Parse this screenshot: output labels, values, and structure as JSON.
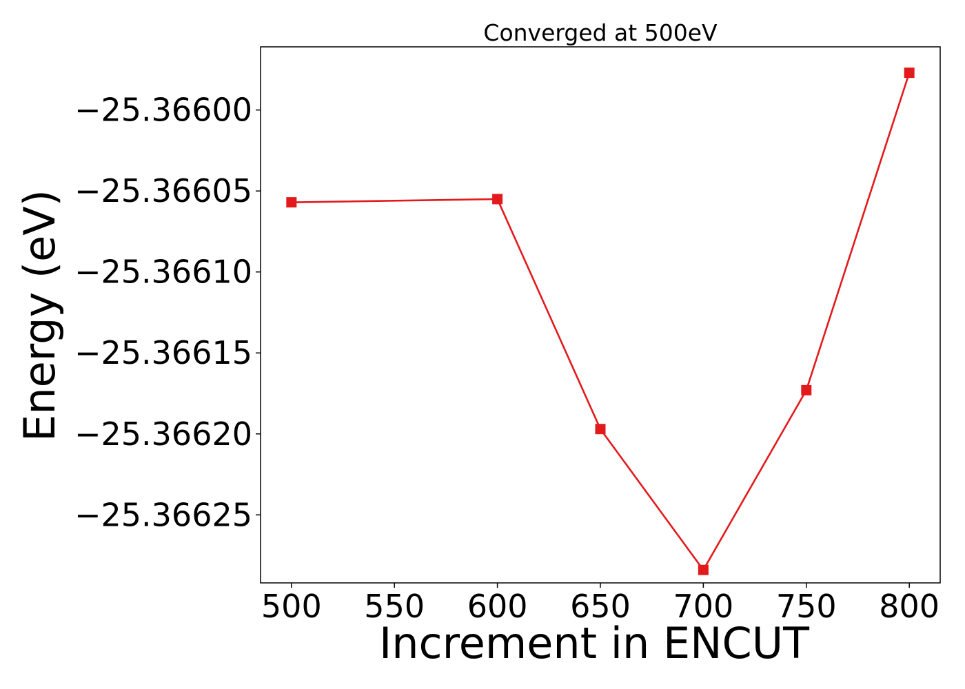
{
  "chart_data": {
    "type": "line",
    "title": "Converged at 500eV",
    "xlabel": "Increment in ENCUT",
    "ylabel": "Energy (eV)",
    "x": [
      500,
      600,
      650,
      700,
      750,
      800
    ],
    "series": [
      {
        "values": [
          -25.366057,
          -25.366055,
          -25.366197,
          -25.366284,
          -25.366173,
          -25.365977
        ],
        "color": "#e31a1c",
        "marker": "square"
      }
    ],
    "xticks": [
      500,
      550,
      600,
      650,
      700,
      750,
      800
    ],
    "xtick_labels": [
      "500",
      "550",
      "600",
      "650",
      "700",
      "750",
      "800"
    ],
    "yticks": [
      -25.366,
      -25.36605,
      -25.3661,
      -25.36615,
      -25.3662,
      -25.36625
    ],
    "ytick_labels": [
      "−25.36600",
      "−25.36605",
      "−25.36610",
      "−25.36615",
      "−25.36620",
      "−25.36625"
    ],
    "xlim": [
      485,
      815
    ],
    "ylim": [
      -25.366292,
      -25.365961
    ],
    "grid": false,
    "legend": "none"
  }
}
